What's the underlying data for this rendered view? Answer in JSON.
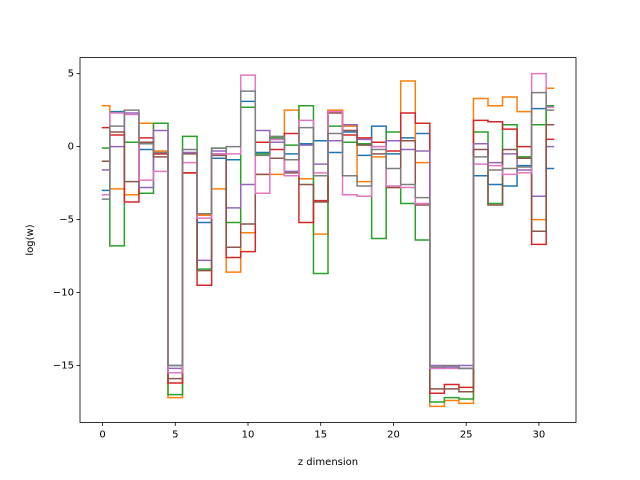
{
  "chart_data": {
    "type": "step",
    "x_label": "z dimension",
    "y_label": "log(w)",
    "x": [
      0,
      1,
      2,
      3,
      4,
      5,
      6,
      7,
      8,
      9,
      10,
      11,
      12,
      13,
      14,
      15,
      16,
      17,
      18,
      19,
      20,
      21,
      22,
      23,
      24,
      25,
      26,
      27,
      28,
      29,
      30,
      31
    ],
    "xlim": [
      -1.55,
      32.55
    ],
    "xticks": [
      0,
      5,
      10,
      15,
      20,
      25,
      30
    ],
    "ylim": [
      -18.9,
      6.1
    ],
    "yticks": [
      {
        "value": -15,
        "label": "−15"
      },
      {
        "value": -10,
        "label": "−10"
      },
      {
        "value": -5,
        "label": "−5"
      },
      0,
      5
    ],
    "series": [
      {
        "color": "#1f77b4",
        "values": [
          -3,
          2.4,
          0.3,
          -0.2,
          -0.5,
          -15,
          -1.8,
          -5.2,
          -0.8,
          -0.9,
          3.1,
          -0.4,
          0.5,
          -0.5,
          0.2,
          0.4,
          -0.4,
          1.0,
          -0.6,
          1.4,
          -0.5,
          0.6,
          0.9,
          -15.2,
          -15.1,
          -15.2,
          -2.0,
          -2.6,
          -2.7,
          -1.3,
          2.6,
          -1.5
        ]
      },
      {
        "color": "#ff7f0e",
        "values": [
          2.8,
          -2.9,
          -3.3,
          1.6,
          -0.3,
          -17.2,
          -1.8,
          -4.7,
          -2.9,
          -8.6,
          -5.9,
          -1.9,
          -1.9,
          2.5,
          -2.2,
          -6.0,
          2.5,
          1.4,
          -2.4,
          -0.7,
          -2.8,
          4.5,
          -1.1,
          -17.8,
          -17.4,
          -17.6,
          3.3,
          2.8,
          3.4,
          2.4,
          -5.0,
          4.0
        ]
      },
      {
        "color": "#2ca02c",
        "values": [
          -0.1,
          -6.8,
          0.3,
          -3.2,
          1.6,
          -17.0,
          0.7,
          -8.4,
          -0.1,
          -5.2,
          2.7,
          -0.5,
          0.6,
          0.1,
          2.8,
          -8.7,
          1.4,
          0.3,
          0.2,
          -6.3,
          1.0,
          -3.9,
          -6.4,
          -17.5,
          -17.2,
          -17.3,
          1.0,
          -3.9,
          1.5,
          -0.7,
          1.5,
          2.8
        ]
      },
      {
        "color": "#d62728",
        "values": [
          1.3,
          0.8,
          -3.8,
          0.6,
          -0.5,
          -16.2,
          -1.8,
          -9.5,
          -0.5,
          -7.6,
          -7.2,
          0.3,
          -0.2,
          0.9,
          -5.2,
          -3.7,
          2.4,
          0.8,
          0.6,
          0.3,
          -0.3,
          2.3,
          1.6,
          -16.9,
          -16.3,
          -16.5,
          1.8,
          1.7,
          1.2,
          0.0,
          -6.7,
          0.5
        ]
      },
      {
        "color": "#9467bd",
        "values": [
          -1.6,
          0.0,
          2.3,
          -2.8,
          1.1,
          -15.2,
          -0.4,
          -7.8,
          -0.3,
          -4.2,
          -2.6,
          1.1,
          0.3,
          -1.7,
          0.1,
          -1.2,
          0.4,
          1.5,
          0.5,
          0.0,
          0.4,
          -0.2,
          -0.3,
          -15.0,
          -15.1,
          -15.0,
          0.2,
          -1.1,
          -0.5,
          -1.6,
          -3.4,
          0.0
        ]
      },
      {
        "color": "#8c564b",
        "values": [
          -1.0,
          1.0,
          -2.4,
          0.3,
          -0.7,
          -15.9,
          -0.5,
          -8.5,
          -0.6,
          -6.9,
          -5.3,
          -1.9,
          -0.8,
          -1.8,
          -2.6,
          -3.8,
          2.3,
          1.1,
          0.1,
          -0.5,
          -2.8,
          0.4,
          -4.0,
          -16.6,
          -16.6,
          -16.8,
          -0.2,
          -4.0,
          -0.2,
          -0.8,
          -5.8,
          1.5
        ]
      },
      {
        "color": "#e377c2",
        "values": [
          -3.3,
          2.3,
          2.2,
          -2.3,
          -1.7,
          -15.5,
          -1.1,
          -4.9,
          -0.5,
          -0.5,
          4.9,
          -3.2,
          0.5,
          -2.0,
          1.8,
          -1.8,
          2.4,
          -3.3,
          -3.4,
          0.0,
          -2.7,
          -2.8,
          -3.9,
          -15.2,
          -15.2,
          -15.2,
          -1.2,
          -1.3,
          -1.9,
          -1.8,
          5.0,
          2.7
        ]
      },
      {
        "color": "#7f7f7f",
        "values": [
          -3.6,
          1.4,
          2.5,
          0.2,
          -0.4,
          -15.0,
          -0.2,
          -4.6,
          -0.1,
          0.0,
          3.8,
          -0.6,
          0.7,
          -0.9,
          1.3,
          -2.0,
          0.9,
          -2.0,
          -2.7,
          -0.2,
          -1.5,
          -2.6,
          -3.5,
          -15.1,
          -15.0,
          -15.2,
          -0.7,
          -1.6,
          -1.5,
          -1.4,
          3.7,
          2.5
        ]
      }
    ]
  }
}
